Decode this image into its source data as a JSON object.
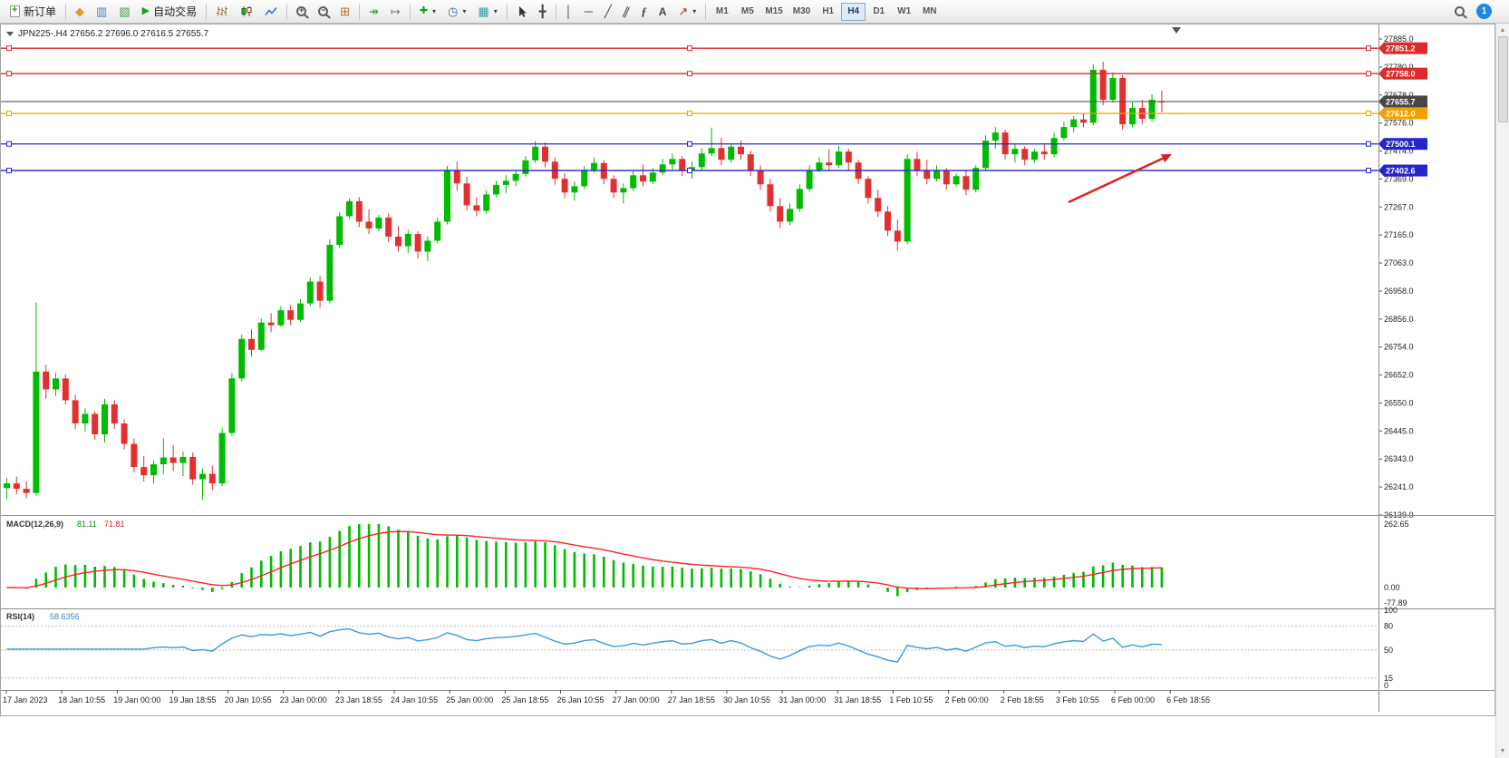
{
  "toolbar": {
    "new_order_label": "新订单",
    "autotrade_label": "自动交易",
    "timeframes": [
      "M1",
      "M5",
      "M15",
      "M30",
      "H1",
      "H4",
      "D1",
      "W1",
      "MN"
    ],
    "active_timeframe": "H4",
    "notification_badge": "1",
    "icons": {
      "plus": "+",
      "market_watch": "◆",
      "data_window": "▥",
      "navigator": "▧",
      "play": "▶",
      "zoom_in": "+",
      "zoom_out": "−",
      "tile_windows": "⊞",
      "auto_scroll": "↠",
      "chart_shift": "↦",
      "add_indicator": "✚",
      "periods_clock": "◷",
      "templates": "▦",
      "crosshair": "╋",
      "vertical_line": "│",
      "horizontal_line": "─",
      "trend_line": "╱",
      "channel": "∥",
      "fibonacci": "ƒ",
      "text_tool": "A",
      "arrows_tool": "↗",
      "dropdown": "▾",
      "scroll_up": "▲",
      "scroll_down": "▼"
    }
  },
  "window": {
    "title": "JPN225-,H4",
    "ohlc_text": "27656.2 27696.0 27616.5 27655.7"
  },
  "chart_data": {
    "type": "candlestick",
    "symbol": "JPN225-",
    "timeframe": "H4",
    "current": {
      "open": 27656.2,
      "high": 27696.0,
      "low": 27616.5,
      "close": 27655.7
    },
    "colors": {
      "up": "#00bb00",
      "down": "#e23030",
      "background": "#ffffff"
    },
    "price_axis": {
      "min": 26139.0,
      "max": 27885.0,
      "ticks": [
        "27885.0",
        "27780.0",
        "27678.0",
        "27576.0",
        "27474.0",
        "27369.0",
        "27267.0",
        "27165.0",
        "27063.0",
        "26958.0",
        "26856.0",
        "26754.0",
        "26652.0",
        "26550.0",
        "26445.0",
        "26343.0",
        "26241.0",
        "26139.0"
      ]
    },
    "levels": [
      {
        "price": 27851.2,
        "color": "#dd2a2a",
        "style": "line",
        "badge": "27851.2"
      },
      {
        "price": 27758.0,
        "color": "#dd2a2a",
        "style": "line",
        "badge": "27758.0"
      },
      {
        "price": 27655.7,
        "color": "#474747",
        "style": "current",
        "badge": "27655.7"
      },
      {
        "price": 27612.0,
        "color": "#f2a000",
        "style": "line",
        "badge": "27612.0"
      },
      {
        "price": 27500.1,
        "color": "#2525cc",
        "style": "line",
        "badge": "27500.1"
      },
      {
        "price": 27402.6,
        "color": "#2525cc",
        "style": "line",
        "badge": "27402.6"
      }
    ],
    "candles": [
      [
        26238,
        26275,
        26198,
        26255
      ],
      [
        26255,
        26280,
        26215,
        26235
      ],
      [
        26235,
        26262,
        26200,
        26220
      ],
      [
        26220,
        26918,
        26210,
        26665
      ],
      [
        26665,
        26690,
        26565,
        26600
      ],
      [
        26600,
        26660,
        26575,
        26640
      ],
      [
        26640,
        26655,
        26545,
        26560
      ],
      [
        26560,
        26580,
        26455,
        26475
      ],
      [
        26475,
        26530,
        26445,
        26510
      ],
      [
        26510,
        26520,
        26415,
        26435
      ],
      [
        26435,
        26565,
        26405,
        26545
      ],
      [
        26545,
        26560,
        26455,
        26475
      ],
      [
        26475,
        26490,
        26380,
        26400
      ],
      [
        26400,
        26420,
        26295,
        26315
      ],
      [
        26315,
        26355,
        26262,
        26285
      ],
      [
        26285,
        26340,
        26255,
        26325
      ],
      [
        26325,
        26420,
        26290,
        26350
      ],
      [
        26350,
        26395,
        26300,
        26330
      ],
      [
        26330,
        26372,
        26282,
        26352
      ],
      [
        26352,
        26368,
        26250,
        26270
      ],
      [
        26270,
        26310,
        26195,
        26290
      ],
      [
        26290,
        26320,
        26230,
        26255
      ],
      [
        26255,
        26460,
        26245,
        26440
      ],
      [
        26440,
        26660,
        26430,
        26640
      ],
      [
        26640,
        26800,
        26630,
        26785
      ],
      [
        26785,
        26820,
        26720,
        26745
      ],
      [
        26745,
        26860,
        26740,
        26845
      ],
      [
        26845,
        26880,
        26810,
        26835
      ],
      [
        26835,
        26905,
        26830,
        26890
      ],
      [
        26890,
        26910,
        26835,
        26855
      ],
      [
        26855,
        26930,
        26848,
        26915
      ],
      [
        26915,
        27010,
        26905,
        26995
      ],
      [
        26995,
        27015,
        26900,
        26925
      ],
      [
        26925,
        27150,
        26915,
        27130
      ],
      [
        27130,
        27250,
        27120,
        27235
      ],
      [
        27235,
        27300,
        27225,
        27290
      ],
      [
        27290,
        27305,
        27195,
        27215
      ],
      [
        27215,
        27260,
        27170,
        27190
      ],
      [
        27190,
        27240,
        27180,
        27230
      ],
      [
        27230,
        27245,
        27140,
        27160
      ],
      [
        27160,
        27200,
        27105,
        27125
      ],
      [
        27125,
        27185,
        27100,
        27170
      ],
      [
        27170,
        27180,
        27080,
        27105
      ],
      [
        27105,
        27160,
        27070,
        27145
      ],
      [
        27145,
        27230,
        27135,
        27215
      ],
      [
        27215,
        27420,
        27205,
        27405
      ],
      [
        27405,
        27435,
        27330,
        27355
      ],
      [
        27355,
        27380,
        27255,
        27275
      ],
      [
        27275,
        27305,
        27235,
        27255
      ],
      [
        27255,
        27330,
        27245,
        27315
      ],
      [
        27315,
        27365,
        27305,
        27350
      ],
      [
        27350,
        27385,
        27320,
        27365
      ],
      [
        27365,
        27405,
        27345,
        27390
      ],
      [
        27390,
        27455,
        27380,
        27440
      ],
      [
        27440,
        27510,
        27430,
        27490
      ],
      [
        27490,
        27505,
        27415,
        27435
      ],
      [
        27435,
        27450,
        27350,
        27372
      ],
      [
        27372,
        27392,
        27302,
        27322
      ],
      [
        27322,
        27362,
        27292,
        27345
      ],
      [
        27345,
        27420,
        27335,
        27405
      ],
      [
        27405,
        27450,
        27395,
        27430
      ],
      [
        27430,
        27440,
        27352,
        27372
      ],
      [
        27372,
        27385,
        27302,
        27322
      ],
      [
        27322,
        27355,
        27282,
        27338
      ],
      [
        27338,
        27402,
        27328,
        27385
      ],
      [
        27385,
        27425,
        27345,
        27362
      ],
      [
        27362,
        27412,
        27352,
        27395
      ],
      [
        27395,
        27445,
        27385,
        27425
      ],
      [
        27425,
        27465,
        27405,
        27445
      ],
      [
        27445,
        27455,
        27382,
        27402
      ],
      [
        27402,
        27435,
        27372,
        27415
      ],
      [
        27415,
        27485,
        27405,
        27465
      ],
      [
        27465,
        27560,
        27455,
        27485
      ],
      [
        27485,
        27522,
        27422,
        27442
      ],
      [
        27442,
        27502,
        27432,
        27490
      ],
      [
        27490,
        27512,
        27442,
        27462
      ],
      [
        27462,
        27475,
        27382,
        27402
      ],
      [
        27402,
        27422,
        27332,
        27352
      ],
      [
        27352,
        27372,
        27252,
        27272
      ],
      [
        27272,
        27302,
        27192,
        27215
      ],
      [
        27215,
        27282,
        27202,
        27262
      ],
      [
        27262,
        27352,
        27252,
        27335
      ],
      [
        27335,
        27422,
        27325,
        27405
      ],
      [
        27405,
        27452,
        27395,
        27432
      ],
      [
        27432,
        27482,
        27402,
        27422
      ],
      [
        27422,
        27492,
        27412,
        27472
      ],
      [
        27472,
        27482,
        27402,
        27432
      ],
      [
        27432,
        27442,
        27352,
        27372
      ],
      [
        27372,
        27382,
        27282,
        27302
      ],
      [
        27302,
        27332,
        27232,
        27252
      ],
      [
        27252,
        27272,
        27162,
        27182
      ],
      [
        27182,
        27222,
        27108,
        27142
      ],
      [
        27142,
        27462,
        27132,
        27445
      ],
      [
        27445,
        27472,
        27382,
        27402
      ],
      [
        27402,
        27442,
        27352,
        27372
      ],
      [
        27372,
        27422,
        27362,
        27402
      ],
      [
        27402,
        27412,
        27332,
        27352
      ],
      [
        27352,
        27392,
        27342,
        27382
      ],
      [
        27382,
        27402,
        27312,
        27332
      ],
      [
        27332,
        27422,
        27322,
        27412
      ],
      [
        27412,
        27532,
        27402,
        27512
      ],
      [
        27512,
        27562,
        27482,
        27542
      ],
      [
        27542,
        27552,
        27442,
        27462
      ],
      [
        27462,
        27502,
        27432,
        27482
      ],
      [
        27482,
        27492,
        27422,
        27442
      ],
      [
        27442,
        27482,
        27432,
        27472
      ],
      [
        27472,
        27502,
        27442,
        27462
      ],
      [
        27462,
        27542,
        27452,
        27522
      ],
      [
        27522,
        27582,
        27512,
        27562
      ],
      [
        27562,
        27602,
        27542,
        27590
      ],
      [
        27590,
        27612,
        27562,
        27578
      ],
      [
        27578,
        27792,
        27568,
        27772
      ],
      [
        27772,
        27802,
        27642,
        27662
      ],
      [
        27662,
        27762,
        27652,
        27742
      ],
      [
        27742,
        27752,
        27552,
        27572
      ],
      [
        27572,
        27652,
        27562,
        27632
      ],
      [
        27632,
        27662,
        27572,
        27592
      ],
      [
        27592,
        27682,
        27582,
        27662
      ],
      [
        27656.2,
        27696.0,
        27616.5,
        27655.7
      ]
    ],
    "x_labels": [
      "17 Jan 2023",
      "18 Jan 10:55",
      "19 Jan 00:00",
      "19 Jan 18:55",
      "20 Jan 10:55",
      "23 Jan 00:00",
      "23 Jan 18:55",
      "24 Jan 10:55",
      "25 Jan 00:00",
      "25 Jan 18:55",
      "26 Jan 10:55",
      "27 Jan 00:00",
      "27 Jan 18:55",
      "30 Jan 10:55",
      "31 Jan 00:00",
      "31 Jan 18:55",
      "1 Feb 10:55",
      "2 Feb 00:00",
      "2 Feb 18:55",
      "3 Feb 10:55",
      "6 Feb 00:00",
      "6 Feb 18:55"
    ],
    "macd": {
      "label": "MACD(12,26,9)",
      "value_main": "81.11",
      "value_signal": "71.81",
      "fast": 12,
      "slow": 26,
      "signal": 9,
      "axis_max": "262.65",
      "axis_zero": "0.00",
      "axis_min": "-77.89",
      "histogram_color": "#00bb00",
      "signal_color": "#ff2222"
    },
    "rsi": {
      "label": "RSI(14)",
      "value": "58.6356",
      "period": 14,
      "axis": [
        "100",
        "80",
        "50",
        "15",
        "0"
      ],
      "levels": [
        80,
        50,
        15
      ],
      "line_color": "#3a9ad9"
    },
    "annotation_arrow": {
      "color": "#e02020"
    }
  }
}
